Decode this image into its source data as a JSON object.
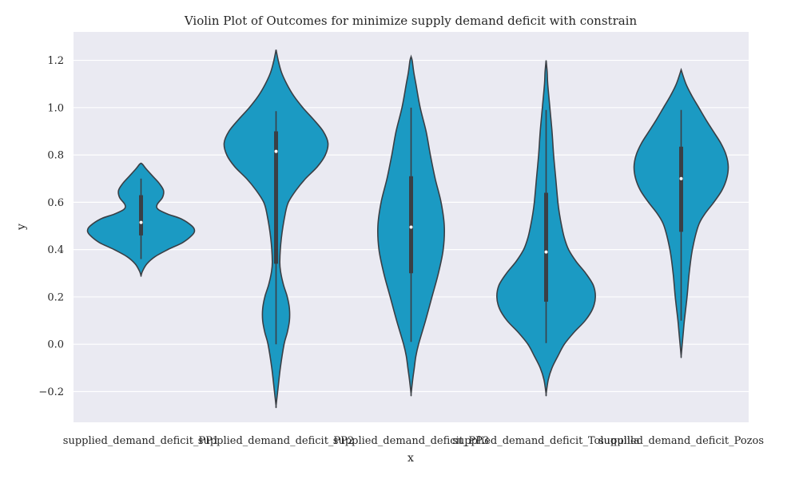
{
  "chart_data": {
    "type": "violin",
    "title": "Violin Plot of Outcomes for minimize supply demand deficit with constrain",
    "xlabel": "x",
    "ylabel": "y",
    "ylim": [
      -0.33,
      1.32
    ],
    "yticks": [
      -0.2,
      0.0,
      0.2,
      0.4,
      0.6,
      0.8,
      1.0,
      1.2
    ],
    "ytick_labels": [
      "−0.2",
      "0.0",
      "0.2",
      "0.4",
      "0.6",
      "0.8",
      "1.0",
      "1.2"
    ],
    "grid": true,
    "colors": {
      "fill": "#1b9ac3",
      "edge": "#3a3f45",
      "background": "#eaeaf2",
      "grid": "#ffffff",
      "median": "#ffffff"
    },
    "categories": [
      "supplied_demand_deficit_PP1",
      "supplied_demand_deficit_PP2",
      "supplied_demand_deficit_PP3",
      "supplied_demand_deficit_Toluquilla",
      "supplied_demand_deficit_Pozos"
    ],
    "violins": [
      {
        "category": "supplied_demand_deficit_PP1",
        "min": 0.36,
        "q1": 0.46,
        "median": 0.515,
        "q3": 0.63,
        "max": 0.7,
        "density": [
          [
            0.29,
            0
          ],
          [
            0.31,
            0.03
          ],
          [
            0.34,
            0.11
          ],
          [
            0.37,
            0.26
          ],
          [
            0.4,
            0.5
          ],
          [
            0.43,
            0.78
          ],
          [
            0.46,
            0.95
          ],
          [
            0.48,
            1.0
          ],
          [
            0.5,
            0.95
          ],
          [
            0.53,
            0.75
          ],
          [
            0.55,
            0.5
          ],
          [
            0.57,
            0.32
          ],
          [
            0.59,
            0.3
          ],
          [
            0.62,
            0.4
          ],
          [
            0.65,
            0.42
          ],
          [
            0.68,
            0.34
          ],
          [
            0.71,
            0.22
          ],
          [
            0.74,
            0.1
          ],
          [
            0.76,
            0.03
          ],
          [
            0.765,
            0
          ]
        ]
      },
      {
        "category": "supplied_demand_deficit_PP2",
        "min": 0.0,
        "q1": 0.34,
        "median": 0.815,
        "q3": 0.9,
        "max": 0.985,
        "density": [
          [
            -0.26,
            0
          ],
          [
            -0.2,
            0.03
          ],
          [
            -0.1,
            0.08
          ],
          [
            0.0,
            0.15
          ],
          [
            0.05,
            0.21
          ],
          [
            0.1,
            0.25
          ],
          [
            0.15,
            0.25
          ],
          [
            0.2,
            0.21
          ],
          [
            0.25,
            0.14
          ],
          [
            0.3,
            0.09
          ],
          [
            0.35,
            0.07
          ],
          [
            0.45,
            0.1
          ],
          [
            0.55,
            0.17
          ],
          [
            0.6,
            0.23
          ],
          [
            0.65,
            0.37
          ],
          [
            0.7,
            0.55
          ],
          [
            0.75,
            0.77
          ],
          [
            0.8,
            0.92
          ],
          [
            0.85,
            0.97
          ],
          [
            0.9,
            0.88
          ],
          [
            0.95,
            0.7
          ],
          [
            1.0,
            0.5
          ],
          [
            1.05,
            0.33
          ],
          [
            1.1,
            0.2
          ],
          [
            1.15,
            0.1
          ],
          [
            1.2,
            0.04
          ],
          [
            1.245,
            0
          ]
        ]
      },
      {
        "category": "supplied_demand_deficit_PP3",
        "min": 0.01,
        "q1": 0.3,
        "median": 0.495,
        "q3": 0.71,
        "max": 1.0,
        "density": [
          [
            -0.21,
            0
          ],
          [
            -0.15,
            0.03
          ],
          [
            -0.1,
            0.06
          ],
          [
            -0.05,
            0.09
          ],
          [
            0.0,
            0.14
          ],
          [
            0.1,
            0.27
          ],
          [
            0.2,
            0.39
          ],
          [
            0.3,
            0.51
          ],
          [
            0.4,
            0.6
          ],
          [
            0.5,
            0.62
          ],
          [
            0.6,
            0.56
          ],
          [
            0.7,
            0.45
          ],
          [
            0.8,
            0.36
          ],
          [
            0.9,
            0.28
          ],
          [
            1.0,
            0.17
          ],
          [
            1.1,
            0.09
          ],
          [
            1.15,
            0.05
          ],
          [
            1.2,
            0.02
          ],
          [
            1.215,
            0
          ]
        ]
      },
      {
        "category": "supplied_demand_deficit_Toluquilla",
        "min": 0.005,
        "q1": 0.18,
        "median": 0.39,
        "q3": 0.64,
        "max": 0.99,
        "density": [
          [
            -0.21,
            0
          ],
          [
            -0.15,
            0.04
          ],
          [
            -0.1,
            0.11
          ],
          [
            -0.05,
            0.22
          ],
          [
            0.0,
            0.34
          ],
          [
            0.05,
            0.52
          ],
          [
            0.1,
            0.73
          ],
          [
            0.15,
            0.87
          ],
          [
            0.2,
            0.92
          ],
          [
            0.25,
            0.88
          ],
          [
            0.3,
            0.74
          ],
          [
            0.35,
            0.56
          ],
          [
            0.4,
            0.42
          ],
          [
            0.45,
            0.34
          ],
          [
            0.5,
            0.29
          ],
          [
            0.55,
            0.25
          ],
          [
            0.6,
            0.22
          ],
          [
            0.7,
            0.18
          ],
          [
            0.8,
            0.14
          ],
          [
            0.9,
            0.11
          ],
          [
            1.0,
            0.07
          ],
          [
            1.1,
            0.03
          ],
          [
            1.15,
            0.02
          ],
          [
            1.2,
            0
          ]
        ]
      },
      {
        "category": "supplied_demand_deficit_Pozos",
        "min": 0.1,
        "q1": 0.475,
        "median": 0.7,
        "q3": 0.835,
        "max": 0.99,
        "density": [
          [
            -0.05,
            0
          ],
          [
            0.0,
            0.02
          ],
          [
            0.05,
            0.04
          ],
          [
            0.1,
            0.06
          ],
          [
            0.2,
            0.11
          ],
          [
            0.3,
            0.15
          ],
          [
            0.4,
            0.21
          ],
          [
            0.5,
            0.32
          ],
          [
            0.55,
            0.44
          ],
          [
            0.6,
            0.61
          ],
          [
            0.65,
            0.76
          ],
          [
            0.7,
            0.85
          ],
          [
            0.75,
            0.88
          ],
          [
            0.8,
            0.84
          ],
          [
            0.85,
            0.74
          ],
          [
            0.9,
            0.6
          ],
          [
            0.95,
            0.46
          ],
          [
            1.0,
            0.33
          ],
          [
            1.05,
            0.2
          ],
          [
            1.1,
            0.09
          ],
          [
            1.16,
            0
          ]
        ]
      }
    ]
  }
}
